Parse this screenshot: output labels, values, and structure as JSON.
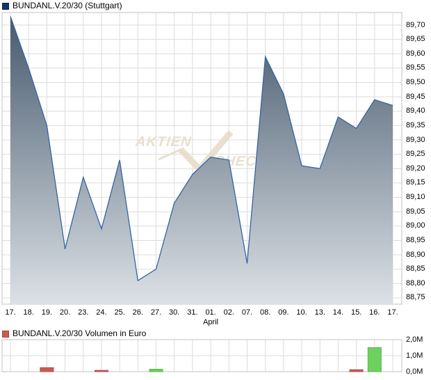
{
  "header": {
    "legend_label": "BUNDANL.V.20/30 (Stuttgart)"
  },
  "volume_header": {
    "legend_label": "BUNDANL.V.20/30 Volumen in Euro"
  },
  "watermark": {
    "left": "AKTIEN",
    "right": "CHECK"
  },
  "colors": {
    "price_line": "#3464a4",
    "area_gradient_top": "#45586c",
    "area_gradient_bottom": "#dce1e6",
    "grid": "#dcdcdc",
    "frame": "#c2c2c2",
    "bar_up": "#6ed05e",
    "bar_up_border": "#55b447",
    "bar_down": "#cd5a52",
    "bar_down_border": "#b04a44",
    "legend_navy": "#15356a",
    "legend_red": "#cd5a52",
    "watermark": "#e8dfce"
  },
  "chart_data": [
    {
      "type": "area",
      "title": "BUNDANL.V.20/30 (Stuttgart)",
      "exchange": "Stuttgart",
      "x_labels": [
        "17.",
        "18.",
        "19.",
        "20.",
        "23.",
        "24.",
        "25.",
        "26.",
        "27.",
        "30.",
        "31.",
        "01.",
        "02.",
        "07.",
        "08.",
        "09.",
        "10.",
        "13.",
        "14.",
        "15.",
        "16.",
        "17."
      ],
      "month_label": "April",
      "month_under_index": 11,
      "values": [
        89.73,
        89.55,
        89.35,
        88.92,
        89.17,
        88.99,
        89.23,
        88.81,
        88.85,
        89.08,
        89.18,
        89.24,
        89.23,
        88.87,
        89.59,
        89.46,
        89.21,
        89.2,
        89.38,
        89.34,
        89.44,
        89.42
      ],
      "y_ticks": [
        "89,70",
        "89,65",
        "89,60",
        "89,55",
        "89,50",
        "89,45",
        "89,40",
        "89,35",
        "89,30",
        "89,25",
        "89,20",
        "89,15",
        "89,10",
        "89,05",
        "89,00",
        "88,95",
        "88,90",
        "88,85",
        "88,80",
        "88,75"
      ],
      "ylim": [
        88.72,
        89.76
      ],
      "tick_step": 0.05,
      "grid": true,
      "legend_position": "top-left",
      "y_axis_side": "right"
    },
    {
      "type": "bar",
      "title": "BUNDANL.V.20/30 Volumen in Euro",
      "ylabel": "Volumen in Euro",
      "x_labels": [
        "17.",
        "18.",
        "19.",
        "20.",
        "23.",
        "24.",
        "25.",
        "26.",
        "27.",
        "30.",
        "31.",
        "01.",
        "02.",
        "07.",
        "08.",
        "09.",
        "10.",
        "13.",
        "14.",
        "15.",
        "16.",
        "17."
      ],
      "values_millions": [
        0,
        0,
        0.25,
        0,
        0,
        0.08,
        0,
        0,
        0.15,
        0,
        0,
        0,
        0,
        0,
        0,
        0,
        0,
        0,
        0,
        0.12,
        1.5,
        0
      ],
      "directions": [
        "",
        "",
        "down",
        "",
        "",
        "down",
        "",
        "",
        "up",
        "",
        "",
        "",
        "",
        "",
        "",
        "",
        "",
        "",
        "",
        "down",
        "up",
        ""
      ],
      "y_ticks": [
        "2,0M",
        "1,0M",
        "0,0M"
      ],
      "ylim_millions": [
        0,
        2.0
      ],
      "grid": true,
      "y_axis_side": "right"
    }
  ]
}
